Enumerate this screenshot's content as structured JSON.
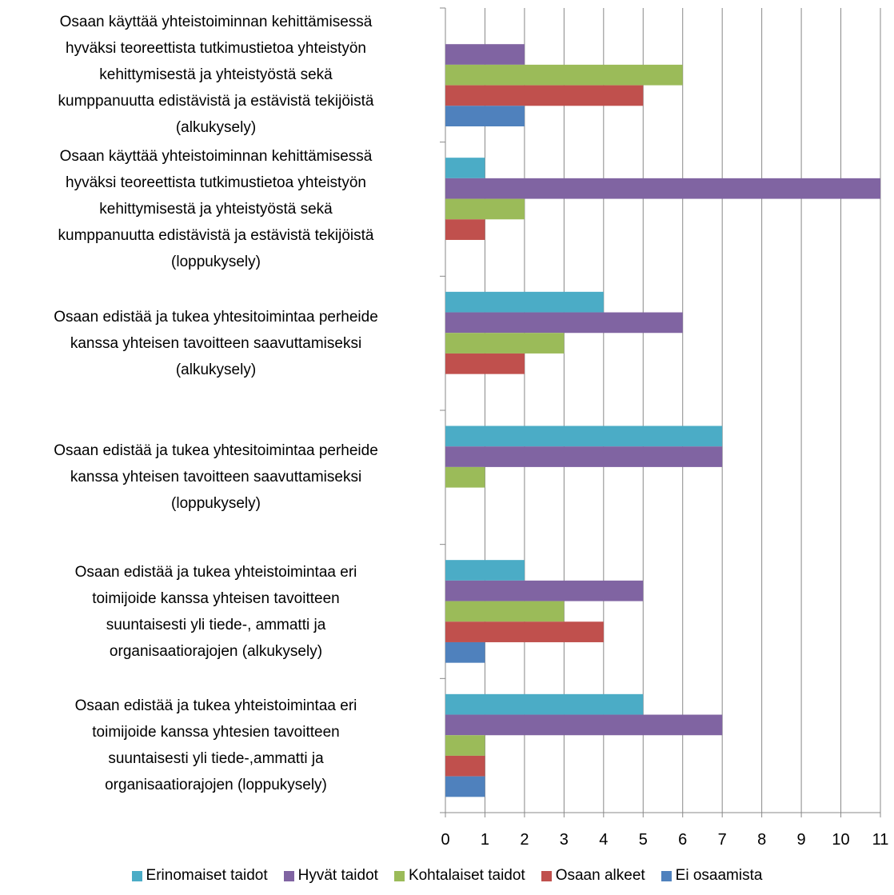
{
  "chart_data": {
    "type": "barh",
    "categories": [
      "Osaan käyttää yhteistoiminnan kehittämisessä\nhyväksi teoreettista tutkimustietoa yhteistyön\nkehittymisestä ja yhteistyöstä sekä\nkumppanuutta edistävistä ja estävistä tekijöistä\n(alkukysely)",
      "Osaan käyttää yhteistoiminnan kehittämisessä\nhyväksi teoreettista tutkimustietoa yhteistyön\nkehittymisestä ja yhteistyöstä sekä\nkumppanuutta edistävistä ja estävistä tekijöistä\n(loppukysely)",
      "Osaan edistää ja tukea yhtesitoimintaa perheide\nkanssa yhteisen tavoitteen saavuttamiseksi\n(alkukysely)",
      "Osaan edistää ja tukea yhtesitoimintaa perheide\nkanssa yhteisen tavoitteen saavuttamiseksi\n(loppukysely)",
      "Osaan edistää ja tukea yhteistoimintaa eri\ntoimijoide kanssa yhteisen tavoitteen\nsuuntaisesti yli tiede-, ammatti ja\norganisaatiorajojen (alkukysely)",
      "Osaan edistää ja tukea yhteistoimintaa eri\ntoimijoide kanssa yhtesien tavoitteen\nsuuntaisesti yli tiede-,ammatti ja\norganisaatiorajojen (loppukysely)"
    ],
    "series": [
      {
        "name": "Erinomaiset taidot",
        "color": "#4bacc6",
        "values": [
          0,
          1,
          4,
          7,
          2,
          5
        ]
      },
      {
        "name": "Hyvät taidot",
        "color": "#8064a2",
        "values": [
          2,
          11,
          6,
          7,
          5,
          7
        ]
      },
      {
        "name": "Kohtalaiset taidot",
        "color": "#9bbb59",
        "values": [
          6,
          2,
          3,
          1,
          3,
          1
        ]
      },
      {
        "name": "Osaan alkeet",
        "color": "#c0504d",
        "values": [
          5,
          1,
          2,
          0,
          4,
          1
        ]
      },
      {
        "name": "Ei osaamista",
        "color": "#4f81bd",
        "values": [
          2,
          0,
          0,
          0,
          1,
          1
        ]
      }
    ],
    "xlim": [
      0,
      11
    ],
    "xticks": [
      0,
      1,
      2,
      3,
      4,
      5,
      6,
      7,
      8,
      9,
      10,
      11
    ],
    "grid": true,
    "legend": "bottom"
  }
}
